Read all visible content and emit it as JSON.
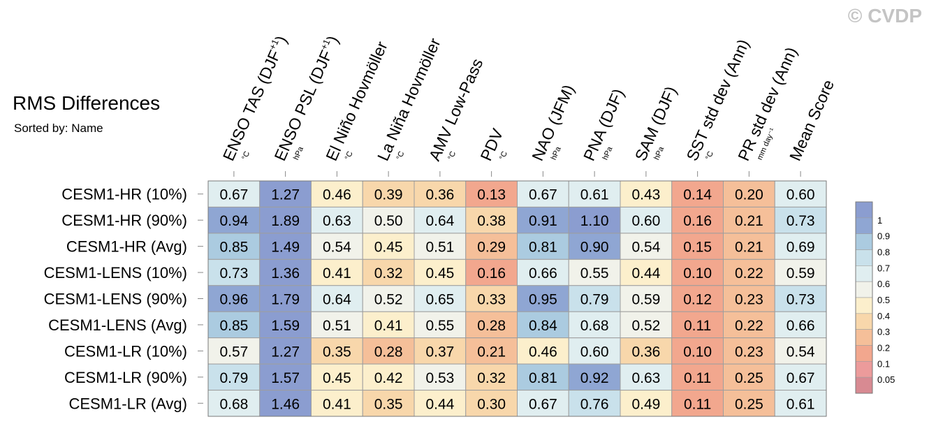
{
  "watermark": "© CVDP",
  "title": "RMS Differences",
  "subtitle": "Sorted by: Name",
  "chart_data": {
    "type": "heatmap",
    "title": "RMS Differences",
    "subtitle": "Sorted by: Name",
    "columns": [
      {
        "label": "ENSO TAS (DJF",
        "sup": "+1",
        "close": ")",
        "unit": "°C"
      },
      {
        "label": "ENSO PSL (DJF",
        "sup": "+1",
        "close": ")",
        "unit": "hPa"
      },
      {
        "label": "El Niño Hovmöller",
        "sup": "",
        "close": "",
        "unit": "°C"
      },
      {
        "label": "La Niña Hovmöller",
        "sup": "",
        "close": "",
        "unit": "°C"
      },
      {
        "label": "AMV Low-Pass",
        "sup": "",
        "close": "",
        "unit": "°C"
      },
      {
        "label": "PDV",
        "sup": "",
        "close": "",
        "unit": "°C"
      },
      {
        "label": "NAO (JFM)",
        "sup": "",
        "close": "",
        "unit": "hPa"
      },
      {
        "label": "PNA (DJF)",
        "sup": "",
        "close": "",
        "unit": "hPa"
      },
      {
        "label": "SAM (DJF)",
        "sup": "",
        "close": "",
        "unit": "hPa"
      },
      {
        "label": "SST std dev (Ann)",
        "sup": "",
        "close": "",
        "unit": "°C"
      },
      {
        "label": "PR std dev (Ann)",
        "sup": "",
        "close": "",
        "unit": "mm day⁻¹"
      },
      {
        "label": "Mean Score",
        "sup": "",
        "close": "",
        "unit": ""
      }
    ],
    "rows": [
      "CESM1-HR (10%)",
      "CESM1-HR (90%)",
      "CESM1-HR (Avg)",
      "CESM1-LENS (10%)",
      "CESM1-LENS (90%)",
      "CESM1-LENS (Avg)",
      "CESM1-LR (10%)",
      "CESM1-LR (90%)",
      "CESM1-LR (Avg)"
    ],
    "values": [
      [
        "0.67",
        "1.27",
        "0.46",
        "0.39",
        "0.36",
        "0.13",
        "0.67",
        "0.61",
        "0.43",
        "0.14",
        "0.20",
        "0.60"
      ],
      [
        "0.94",
        "1.89",
        "0.63",
        "0.50",
        "0.64",
        "0.38",
        "0.91",
        "1.10",
        "0.60",
        "0.16",
        "0.21",
        "0.73"
      ],
      [
        "0.85",
        "1.49",
        "0.54",
        "0.45",
        "0.51",
        "0.29",
        "0.81",
        "0.90",
        "0.54",
        "0.15",
        "0.21",
        "0.69"
      ],
      [
        "0.73",
        "1.36",
        "0.41",
        "0.32",
        "0.45",
        "0.16",
        "0.66",
        "0.55",
        "0.44",
        "0.10",
        "0.22",
        "0.59"
      ],
      [
        "0.96",
        "1.79",
        "0.64",
        "0.52",
        "0.65",
        "0.33",
        "0.95",
        "0.79",
        "0.59",
        "0.12",
        "0.23",
        "0.73"
      ],
      [
        "0.85",
        "1.59",
        "0.51",
        "0.41",
        "0.55",
        "0.28",
        "0.84",
        "0.68",
        "0.52",
        "0.11",
        "0.22",
        "0.66"
      ],
      [
        "0.57",
        "1.27",
        "0.35",
        "0.28",
        "0.37",
        "0.21",
        "0.46",
        "0.60",
        "0.36",
        "0.10",
        "0.23",
        "0.54"
      ],
      [
        "0.79",
        "1.57",
        "0.45",
        "0.42",
        "0.53",
        "0.32",
        "0.81",
        "0.92",
        "0.63",
        "0.11",
        "0.25",
        "0.67"
      ],
      [
        "0.68",
        "1.46",
        "0.41",
        "0.35",
        "0.44",
        "0.30",
        "0.67",
        "0.76",
        "0.49",
        "0.11",
        "0.25",
        "0.61"
      ]
    ],
    "colorbar": {
      "thresholds": [
        0.05,
        0.1,
        0.2,
        0.3,
        0.4,
        0.5,
        0.6,
        0.7,
        0.8,
        0.9,
        1
      ],
      "labels": [
        "0.05",
        "0.1",
        "0.2",
        "0.3",
        "0.4",
        "0.5",
        "0.6",
        "0.7",
        "0.8",
        "0.9",
        "1"
      ],
      "colors": [
        "#d88a92",
        "#ec9b9b",
        "#f2a78e",
        "#f5bf99",
        "#f8d7ab",
        "#fcefcc",
        "#f1f2ea",
        "#e0eef0",
        "#c9e1eb",
        "#abcbe0",
        "#8fa6d3",
        "#8b9dd0"
      ]
    }
  }
}
